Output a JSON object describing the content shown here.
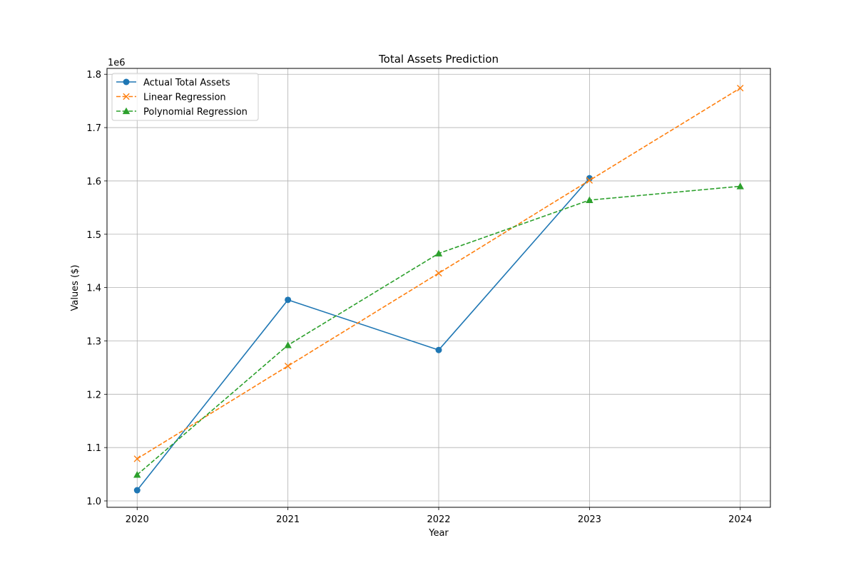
{
  "chart_data": {
    "type": "line",
    "title": "Total Assets Prediction",
    "xlabel": "Year",
    "ylabel": "Values ($)",
    "y_offset_label": "1e6",
    "x": [
      2020,
      2021,
      2022,
      2023,
      2024
    ],
    "x_tick_labels": [
      "2020",
      "2021",
      "2022",
      "2023",
      "2024"
    ],
    "y_ticks": [
      1.0,
      1.1,
      1.2,
      1.3,
      1.4,
      1.5,
      1.6,
      1.7,
      1.8
    ],
    "y_tick_labels": [
      "1.0",
      "1.1",
      "1.2",
      "1.3",
      "1.4",
      "1.5",
      "1.6",
      "1.7",
      "1.8"
    ],
    "xlim": [
      2019.8,
      2024.2
    ],
    "ylim": [
      0.988,
      1.811
    ],
    "grid": true,
    "legend_position": "upper-left",
    "series": [
      {
        "name": "Actual Total Assets",
        "color": "#1f77b4",
        "line_style": "solid",
        "marker": "circle",
        "x": [
          2020,
          2021,
          2022,
          2023
        ],
        "values": [
          1.02,
          1.377,
          1.283,
          1.605
        ]
      },
      {
        "name": "Linear Regression",
        "color": "#ff7f0e",
        "line_style": "dashed",
        "marker": "x",
        "x": [
          2020,
          2021,
          2022,
          2023,
          2024
        ],
        "values": [
          1.079,
          1.253,
          1.427,
          1.601,
          1.774
        ]
      },
      {
        "name": "Polynomial Regression",
        "color": "#2ca02c",
        "line_style": "dashed",
        "marker": "triangle",
        "x": [
          2020,
          2021,
          2022,
          2023,
          2024
        ],
        "values": [
          1.049,
          1.292,
          1.464,
          1.564,
          1.59
        ]
      }
    ]
  }
}
